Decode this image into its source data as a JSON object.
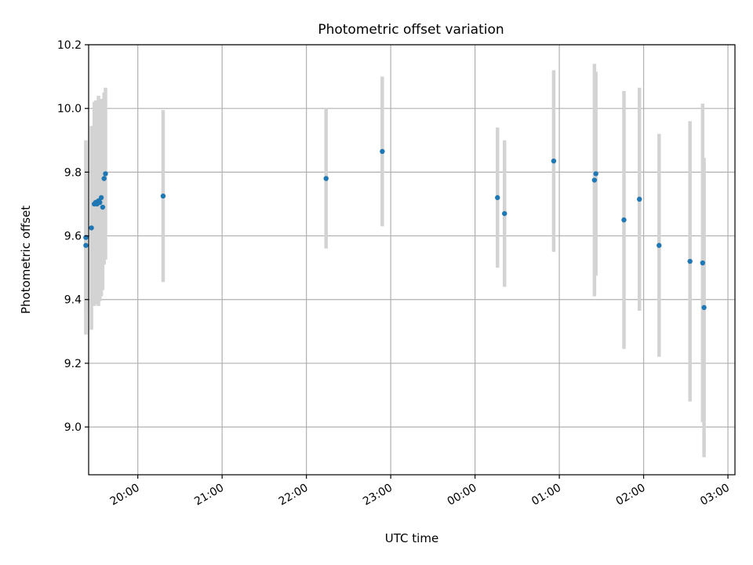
{
  "chart_data": {
    "type": "scatter",
    "title": "Photometric offset variation",
    "xlabel": "UTC time",
    "ylabel": "Photometric offset",
    "x_unit": "hours",
    "xlim": [
      "19:25",
      "03:05"
    ],
    "ylim": [
      8.85,
      10.2
    ],
    "x_ticks": [
      "20:00",
      "21:00",
      "22:00",
      "23:00",
      "00:00",
      "01:00",
      "02:00",
      "03:00"
    ],
    "y_ticks": [
      "9.0",
      "9.2",
      "9.4",
      "9.6",
      "9.8",
      "10.0",
      "10.2"
    ],
    "grid": true,
    "point_color": "#1f77b4",
    "errorbar_color": "#d3d3d3",
    "points": [
      {
        "t": "19:23",
        "y": 9.57,
        "err": 0.21
      },
      {
        "t": "19:23",
        "y": 9.595,
        "err": 0.305
      },
      {
        "t": "19:27",
        "y": 9.625,
        "err": 0.32
      },
      {
        "t": "19:29",
        "y": 9.7,
        "err": 0.32
      },
      {
        "t": "19:30",
        "y": 9.705,
        "err": 0.32
      },
      {
        "t": "19:31",
        "y": 9.7,
        "err": 0.3
      },
      {
        "t": "19:32",
        "y": 9.71,
        "err": 0.33
      },
      {
        "t": "19:33",
        "y": 9.705,
        "err": 0.31
      },
      {
        "t": "19:34",
        "y": 9.72,
        "err": 0.31
      },
      {
        "t": "19:35",
        "y": 9.69,
        "err": 0.26
      },
      {
        "t": "19:36",
        "y": 9.78,
        "err": 0.27
      },
      {
        "t": "19:37",
        "y": 9.795,
        "err": 0.27
      },
      {
        "t": "20:18",
        "y": 9.725,
        "err": 0.27
      },
      {
        "t": "22:14",
        "y": 9.78,
        "err": 0.22
      },
      {
        "t": "22:54",
        "y": 9.865,
        "err": 0.235
      },
      {
        "t": "00:16",
        "y": 9.72,
        "err": 0.22
      },
      {
        "t": "00:21",
        "y": 9.67,
        "err": 0.23
      },
      {
        "t": "00:56",
        "y": 9.835,
        "err": 0.285
      },
      {
        "t": "01:25",
        "y": 9.775,
        "err": 0.365
      },
      {
        "t": "01:26",
        "y": 9.795,
        "err": 0.32
      },
      {
        "t": "01:46",
        "y": 9.65,
        "err": 0.405
      },
      {
        "t": "01:57",
        "y": 9.715,
        "err": 0.35
      },
      {
        "t": "02:11",
        "y": 9.57,
        "err": 0.35
      },
      {
        "t": "02:33",
        "y": 9.52,
        "err": 0.44
      },
      {
        "t": "02:42",
        "y": 9.515,
        "err": 0.5
      },
      {
        "t": "02:43",
        "y": 9.375,
        "err": 0.47
      }
    ]
  }
}
